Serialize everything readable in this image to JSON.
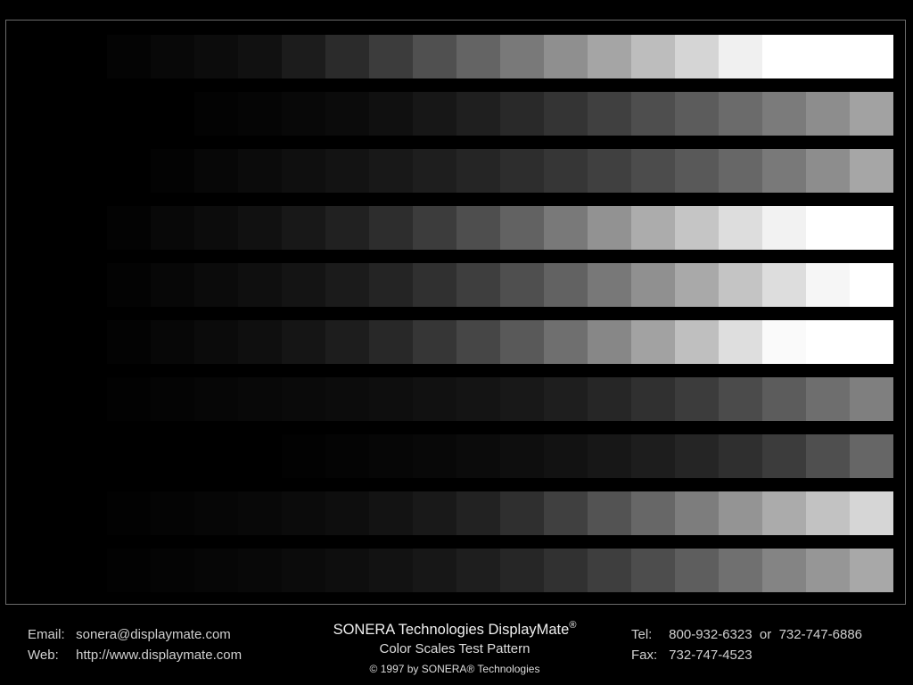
{
  "pattern": {
    "rows": [
      [
        0,
        0,
        4,
        8,
        12,
        17,
        28,
        43,
        60,
        80,
        100,
        121,
        143,
        165,
        189,
        213,
        240,
        255,
        255,
        255
      ],
      [
        0,
        0,
        0,
        0,
        3,
        5,
        8,
        11,
        16,
        23,
        31,
        41,
        52,
        64,
        78,
        92,
        107,
        123,
        141,
        162
      ],
      [
        0,
        0,
        0,
        3,
        7,
        11,
        15,
        19,
        24,
        30,
        37,
        45,
        54,
        64,
        76,
        89,
        103,
        121,
        141,
        166
      ],
      [
        0,
        0,
        3,
        8,
        12,
        17,
        24,
        33,
        45,
        60,
        78,
        98,
        121,
        146,
        172,
        197,
        221,
        242,
        255,
        255
      ],
      [
        0,
        0,
        3,
        7,
        11,
        15,
        20,
        27,
        36,
        48,
        62,
        79,
        98,
        120,
        144,
        169,
        196,
        221,
        246,
        255
      ],
      [
        0,
        0,
        3,
        7,
        11,
        15,
        21,
        29,
        40,
        54,
        70,
        89,
        111,
        135,
        162,
        191,
        222,
        250,
        255,
        255
      ],
      [
        0,
        0,
        2,
        4,
        6,
        8,
        10,
        12,
        14,
        17,
        20,
        24,
        30,
        38,
        48,
        60,
        75,
        92,
        110,
        127
      ],
      [
        0,
        0,
        0,
        0,
        0,
        0,
        2,
        4,
        6,
        8,
        11,
        14,
        18,
        23,
        29,
        37,
        47,
        60,
        79,
        102
      ],
      [
        0,
        0,
        2,
        4,
        6,
        8,
        11,
        14,
        19,
        25,
        34,
        47,
        64,
        83,
        103,
        125,
        148,
        171,
        194,
        214
      ],
      [
        0,
        0,
        2,
        4,
        6,
        8,
        11,
        14,
        18,
        23,
        30,
        38,
        49,
        62,
        77,
        94,
        112,
        132,
        150,
        168
      ]
    ]
  },
  "footer": {
    "email_label": "Email:",
    "email_value": "sonera@displaymate.com",
    "web_label": "Web:",
    "web_value": "http://www.displaymate.com",
    "title": "SONERA Technologies DisplayMate",
    "title_mark": "®",
    "subtitle": "Color Scales Test Pattern",
    "copyright": "© 1997 by SONERA® Technologies",
    "tel_label": "Tel:",
    "tel_value": "800-932-6323  or  732-747-6886",
    "fax_label": "Fax:",
    "fax_value": "732-747-4523"
  }
}
